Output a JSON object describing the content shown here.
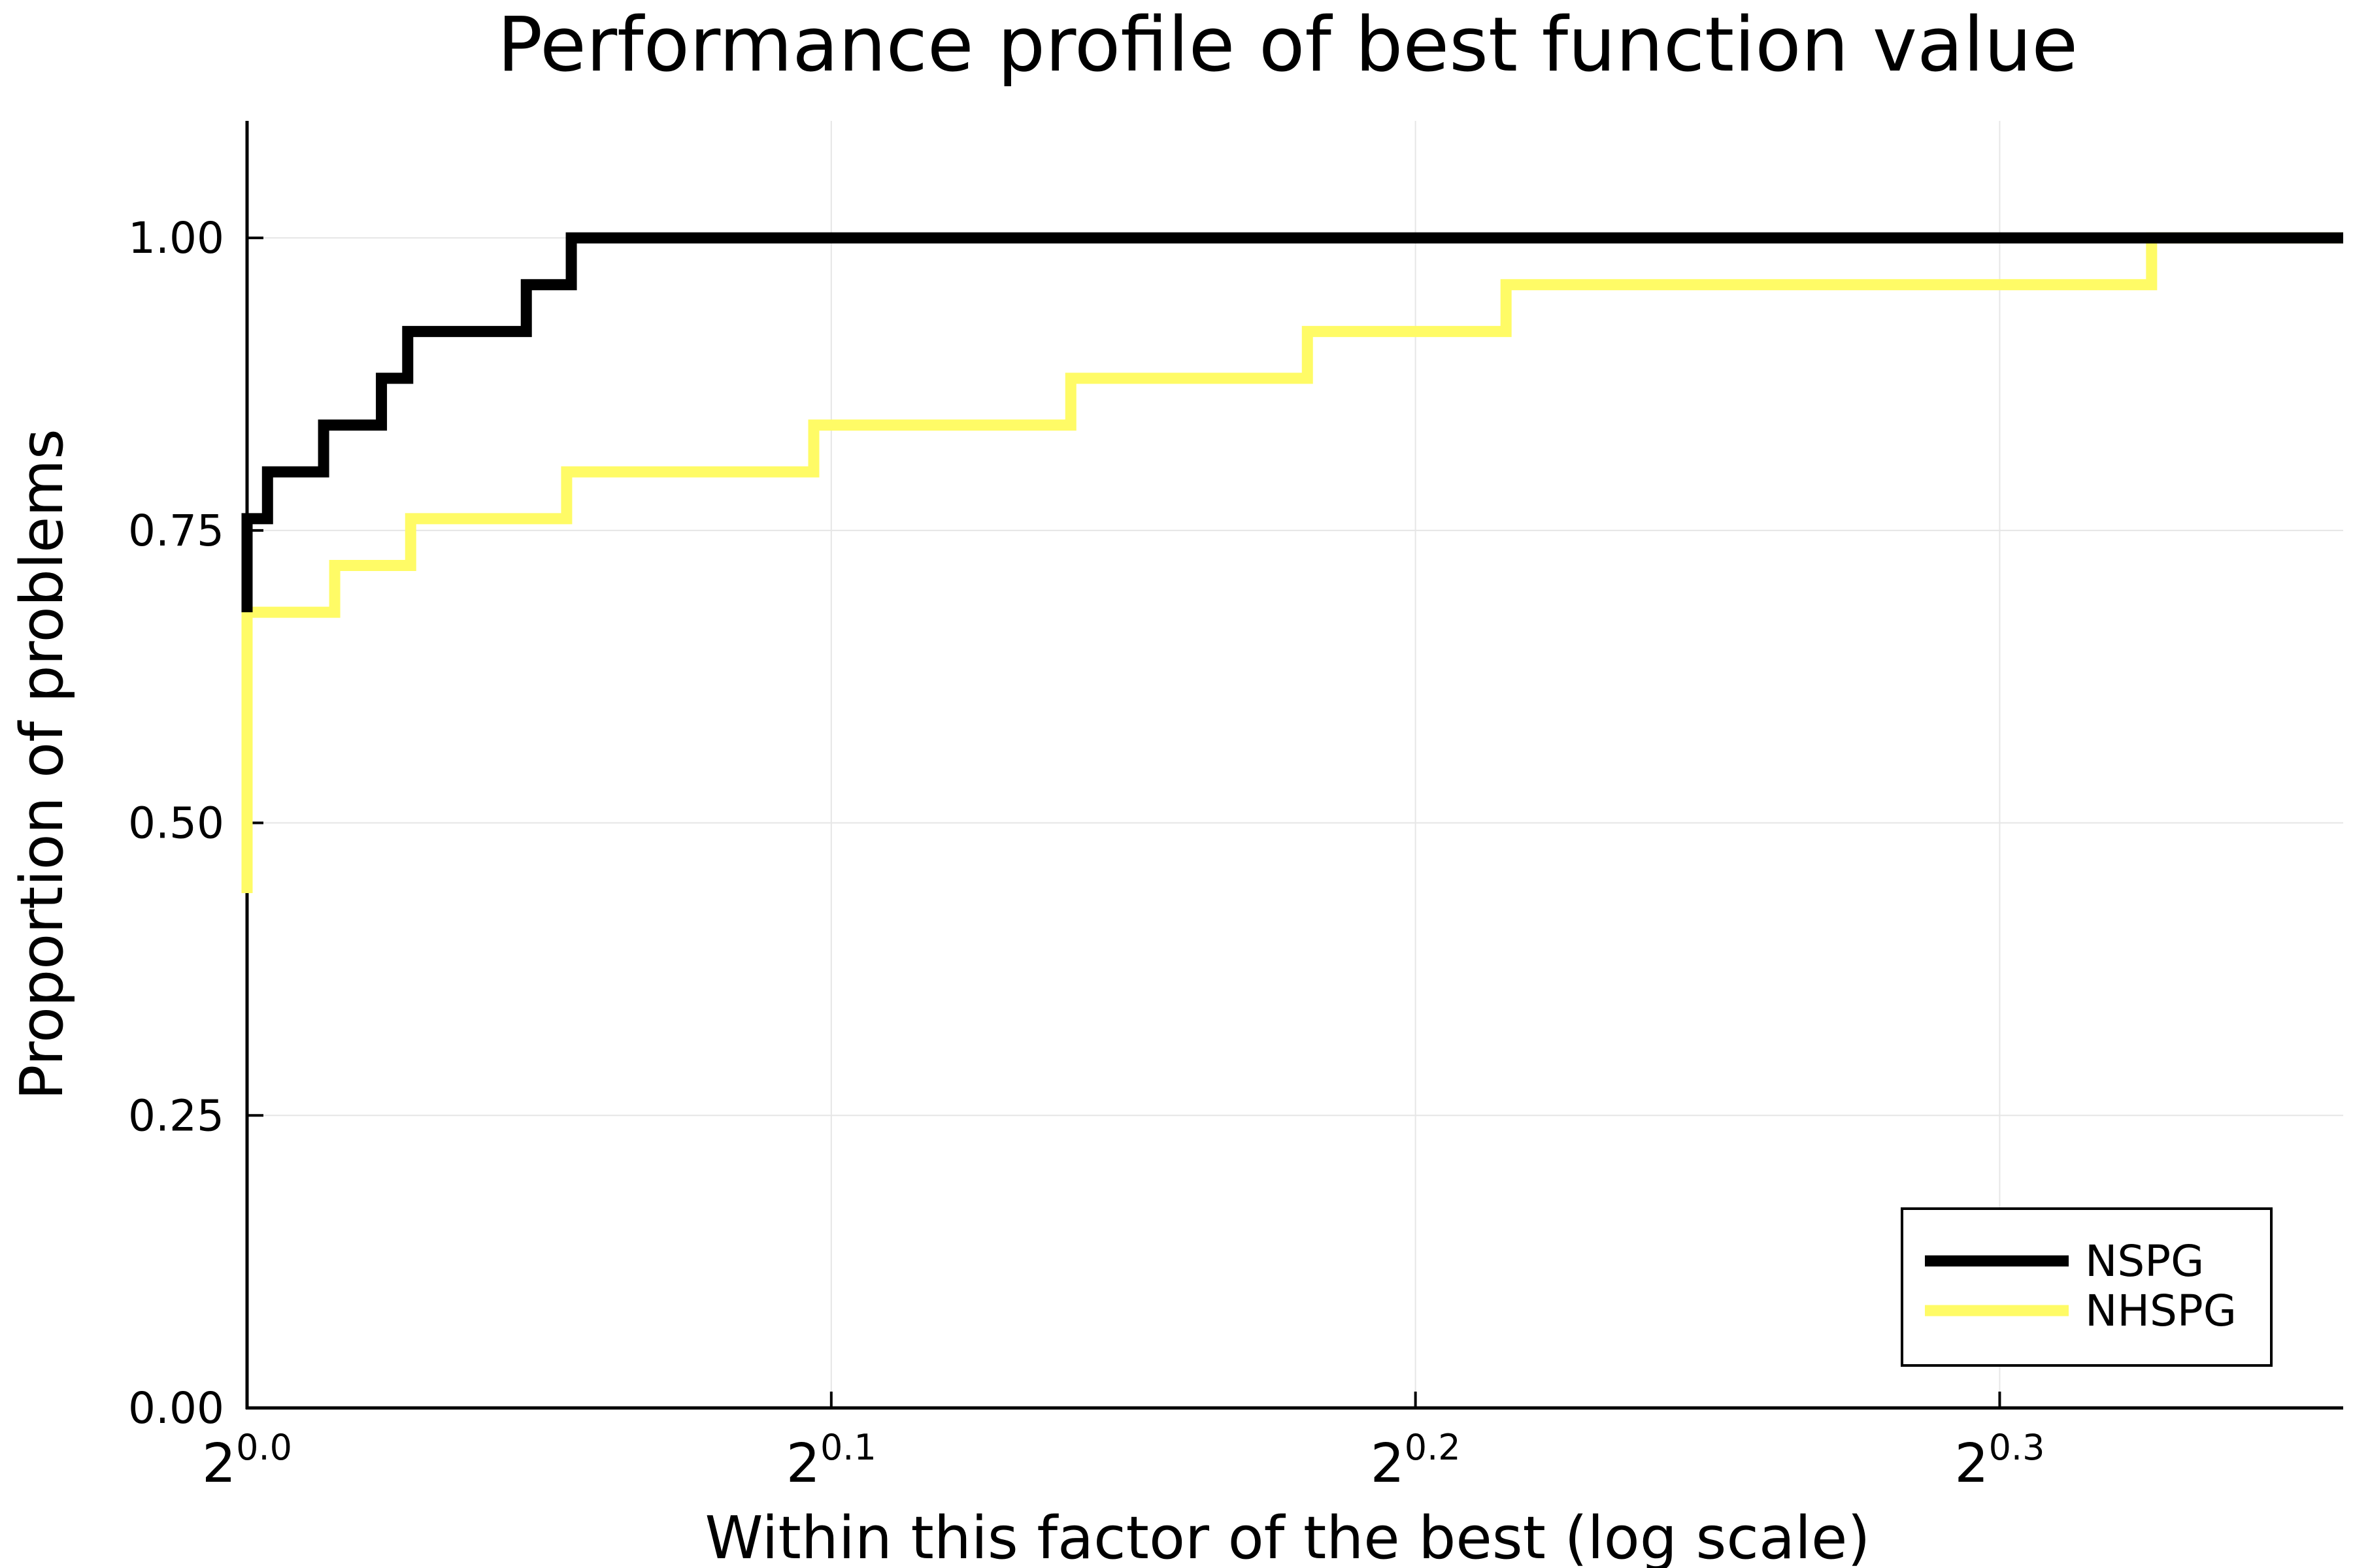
{
  "chart_data": {
    "type": "line",
    "step": true,
    "title": "Performance profile of best function value",
    "xlabel": "Within this factor of the best (log scale)",
    "ylabel": "Proportion of problems",
    "x_scale": "log2",
    "xlim": [
      0.0,
      0.3588
    ],
    "ylim": [
      0.0,
      1.1
    ],
    "x_tick_base": "2",
    "x_ticks": [
      "0.0",
      "0.1",
      "0.2",
      "0.3"
    ],
    "y_ticks": [
      "0.00",
      "0.25",
      "0.50",
      "0.75",
      "1.00"
    ],
    "grid": true,
    "legend_position": "bottom-right",
    "series": [
      {
        "name": "NSPG",
        "color": "#000000",
        "x": [
          0.0,
          0.0,
          0.0035,
          0.0131,
          0.023,
          0.0275,
          0.0478,
          0.0555,
          0.3588
        ],
        "y": [
          0.68,
          0.76,
          0.8,
          0.84,
          0.88,
          0.92,
          0.96,
          1.0,
          1.0
        ]
      },
      {
        "name": "NHSPG",
        "color": "#fffb66",
        "x": [
          0.0,
          0.0,
          0.015,
          0.028,
          0.0547,
          0.097,
          0.141,
          0.1815,
          0.2155,
          0.326,
          0.3588
        ],
        "y": [
          0.44,
          0.68,
          0.72,
          0.76,
          0.8,
          0.84,
          0.88,
          0.92,
          0.96,
          1.0,
          1.0
        ]
      }
    ]
  }
}
